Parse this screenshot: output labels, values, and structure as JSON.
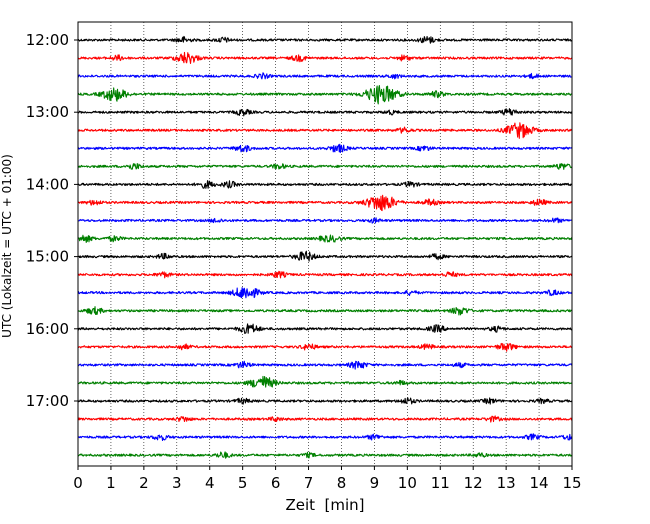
{
  "chart_data": {
    "type": "line",
    "title": "",
    "xlabel": "Zeit  [min]",
    "ylabel": "UTC (Lokalzeit = UTC + 01:00)",
    "xlim": [
      0,
      15
    ],
    "x_ticks": [
      0,
      1,
      2,
      3,
      4,
      5,
      6,
      7,
      8,
      9,
      10,
      11,
      12,
      13,
      14,
      15
    ],
    "y_tick_labels": [
      "12:00",
      "13:00",
      "14:00",
      "15:00",
      "16:00",
      "17:00"
    ],
    "grid": "vertical dotted at each minute",
    "trace_interval_min": 15,
    "start_time": "12:00",
    "colors_cycle": [
      "#000000",
      "#ff0000",
      "#0000ff",
      "#008000"
    ],
    "traces": [
      {
        "start": "12:00",
        "color": "#000000",
        "events": [
          [
            3.2,
            0.6
          ],
          [
            4.4,
            0.5
          ],
          [
            10.6,
            0.7
          ]
        ]
      },
      {
        "start": "12:15",
        "color": "#ff0000",
        "events": [
          [
            1.2,
            0.5
          ],
          [
            3.3,
            1.2
          ],
          [
            6.7,
            0.6
          ],
          [
            9.9,
            0.5
          ]
        ]
      },
      {
        "start": "12:30",
        "color": "#0000ff",
        "events": [
          [
            5.6,
            0.5
          ],
          [
            9.6,
            0.4
          ],
          [
            13.8,
            0.4
          ]
        ]
      },
      {
        "start": "12:45",
        "color": "#008000",
        "events": [
          [
            1.1,
            1.4
          ],
          [
            9.2,
            2.0
          ],
          [
            10.9,
            0.6
          ]
        ]
      },
      {
        "start": "13:00",
        "color": "#000000",
        "events": [
          [
            5.0,
            0.6
          ],
          [
            9.5,
            0.4
          ],
          [
            13.1,
            0.7
          ]
        ]
      },
      {
        "start": "13:15",
        "color": "#ff0000",
        "events": [
          [
            9.9,
            0.5
          ],
          [
            13.4,
            1.6
          ]
        ]
      },
      {
        "start": "13:30",
        "color": "#0000ff",
        "events": [
          [
            5.0,
            0.7
          ],
          [
            7.9,
            0.8
          ],
          [
            10.5,
            0.5
          ]
        ]
      },
      {
        "start": "13:45",
        "color": "#008000",
        "events": [
          [
            1.7,
            0.6
          ],
          [
            6.1,
            0.5
          ],
          [
            14.7,
            0.6
          ]
        ]
      },
      {
        "start": "14:00",
        "color": "#000000",
        "events": [
          [
            3.9,
            0.7
          ],
          [
            4.6,
            0.6
          ],
          [
            10.1,
            0.5
          ]
        ]
      },
      {
        "start": "14:15",
        "color": "#ff0000",
        "events": [
          [
            0.5,
            0.5
          ],
          [
            9.2,
            1.8
          ],
          [
            10.7,
            0.6
          ],
          [
            14.0,
            0.6
          ]
        ]
      },
      {
        "start": "14:30",
        "color": "#0000ff",
        "events": [
          [
            4.2,
            0.4
          ],
          [
            9.0,
            0.4
          ],
          [
            14.5,
            0.4
          ]
        ]
      },
      {
        "start": "14:45",
        "color": "#008000",
        "events": [
          [
            0.2,
            0.7
          ],
          [
            1.1,
            0.5
          ],
          [
            7.5,
            0.5
          ],
          [
            7.8,
            0.5
          ]
        ]
      },
      {
        "start": "15:00",
        "color": "#000000",
        "events": [
          [
            2.6,
            0.5
          ],
          [
            6.9,
            1.0
          ],
          [
            10.9,
            0.5
          ]
        ]
      },
      {
        "start": "15:15",
        "color": "#ff0000",
        "events": [
          [
            2.6,
            0.5
          ],
          [
            6.1,
            0.6
          ],
          [
            11.3,
            0.5
          ]
        ]
      },
      {
        "start": "15:30",
        "color": "#0000ff",
        "events": [
          [
            5.1,
            1.4
          ],
          [
            10.1,
            0.4
          ],
          [
            14.4,
            0.5
          ]
        ]
      },
      {
        "start": "15:45",
        "color": "#008000",
        "events": [
          [
            0.5,
            0.7
          ],
          [
            11.6,
            0.8
          ]
        ]
      },
      {
        "start": "16:00",
        "color": "#000000",
        "events": [
          [
            5.2,
            1.0
          ],
          [
            10.9,
            0.7
          ],
          [
            12.7,
            0.5
          ]
        ]
      },
      {
        "start": "16:15",
        "color": "#ff0000",
        "events": [
          [
            3.2,
            0.5
          ],
          [
            7.0,
            0.6
          ],
          [
            10.6,
            0.5
          ],
          [
            13.0,
            0.8
          ]
        ]
      },
      {
        "start": "16:30",
        "color": "#0000ff",
        "events": [
          [
            5.0,
            0.6
          ],
          [
            8.5,
            0.8
          ],
          [
            11.6,
            0.4
          ]
        ]
      },
      {
        "start": "16:45",
        "color": "#008000",
        "events": [
          [
            5.6,
            1.4
          ],
          [
            9.8,
            0.4
          ]
        ]
      },
      {
        "start": "17:00",
        "color": "#000000",
        "events": [
          [
            5.0,
            0.5
          ],
          [
            10.0,
            0.6
          ],
          [
            12.5,
            0.5
          ],
          [
            14.1,
            0.4
          ]
        ]
      },
      {
        "start": "17:15",
        "color": "#ff0000",
        "events": [
          [
            3.2,
            0.5
          ],
          [
            6.0,
            0.4
          ],
          [
            12.6,
            0.5
          ]
        ]
      },
      {
        "start": "17:30",
        "color": "#0000ff",
        "events": [
          [
            2.5,
            0.6
          ],
          [
            9.0,
            0.5
          ],
          [
            13.8,
            0.5
          ],
          [
            14.9,
            0.5
          ]
        ]
      },
      {
        "start": "17:45",
        "color": "#008000",
        "events": [
          [
            4.4,
            0.6
          ],
          [
            7.0,
            0.4
          ],
          [
            12.2,
            0.4
          ]
        ]
      }
    ]
  }
}
